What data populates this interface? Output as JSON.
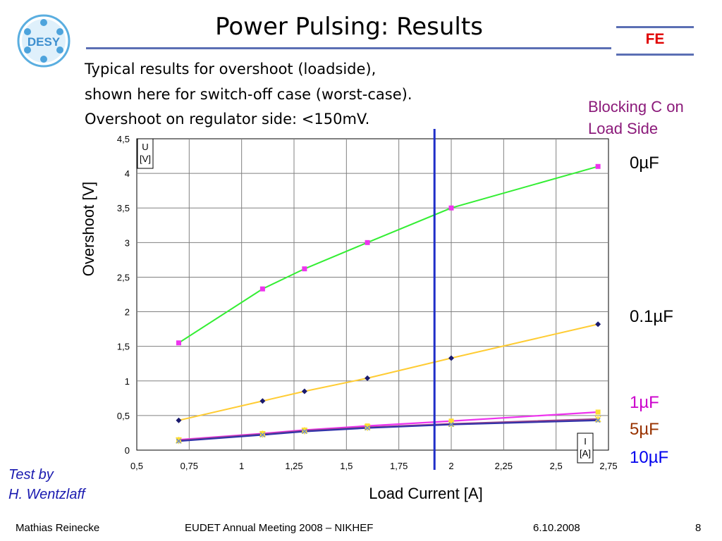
{
  "slide": {
    "title": "Power Pulsing: Results",
    "badge": "FE",
    "logo_text": "DESY",
    "intro_lines": [
      "Typical results for overshoot (loadside),",
      "shown here for switch-off case (worst-case).",
      "Overshoot on regulator side: <150mV."
    ],
    "legend_title_lines": [
      "Blocking C on",
      "Load Side"
    ],
    "test_by_lines": [
      "Test by",
      "H. Wentzlaff"
    ]
  },
  "footer": {
    "author": "Mathias Reinecke",
    "event": "EUDET Annual Meeting 2008 – NIKHEF",
    "date": "6.10.2008",
    "page": "8"
  },
  "colors": {
    "series_0uF": "#33ee33",
    "series_01uF": "#ffcc33",
    "series_1uF": "#ee33ee",
    "series_5uF": "#994488",
    "series_10uF": "#3333aa",
    "marker_pink": "#ee33ee",
    "marker_navy": "#1a1a6e",
    "vline": "#1f2ec8",
    "label_1uF": "#cc00cc",
    "label_5uF": "#993300",
    "label_10uF": "#0000ee",
    "blocking_label": "#8b1a7a",
    "title_rule": "#5b6fb4",
    "badge": "#e00000"
  },
  "chart_data": {
    "type": "line",
    "xlabel": "Load Current [A]",
    "ylabel": "Overshoot [V]",
    "x_unit_box": [
      "I",
      "[A]"
    ],
    "y_unit_box": [
      "U",
      "[V]"
    ],
    "xlim": [
      0.5,
      2.75
    ],
    "ylim": [
      0,
      4.5
    ],
    "xticks": [
      "0,5",
      "0,75",
      "1",
      "1,25",
      "1,5",
      "1,75",
      "2",
      "2,25",
      "2,5",
      "2,75"
    ],
    "yticks": [
      "0",
      "0,5",
      "1",
      "1,5",
      "2",
      "2,5",
      "3",
      "3,5",
      "4",
      "4,5"
    ],
    "grid": true,
    "vertical_line_x": 1.92,
    "series": [
      {
        "name": "0µF",
        "label_color": "#000000",
        "line": "#33ee33",
        "marker": "#ee33ee",
        "marker_shape": "square",
        "x": [
          0.7,
          1.1,
          1.3,
          1.6,
          2.0,
          2.7
        ],
        "y": [
          1.55,
          2.33,
          2.62,
          3.0,
          3.5,
          4.1
        ]
      },
      {
        "name": "0.1µF",
        "label_color": "#000000",
        "line": "#ffcc33",
        "marker": "#1a1a6e",
        "marker_shape": "diamond",
        "x": [
          0.7,
          1.1,
          1.3,
          1.6,
          2.0,
          2.7
        ],
        "y": [
          0.43,
          0.71,
          0.85,
          1.04,
          1.33,
          1.82
        ]
      },
      {
        "name": "1µF",
        "label_color": "#cc00cc",
        "line": "#ee33ee",
        "marker": "#ffdd33",
        "marker_shape": "square",
        "x": [
          0.7,
          1.1,
          1.3,
          1.6,
          2.0,
          2.7
        ],
        "y": [
          0.15,
          0.24,
          0.29,
          0.35,
          0.42,
          0.55
        ]
      },
      {
        "name": "5µF",
        "label_color": "#993300",
        "line": "#994488",
        "marker": "#ffdd33",
        "marker_shape": "star",
        "x": [
          0.7,
          1.1,
          1.3,
          1.6,
          2.0,
          2.7
        ],
        "y": [
          0.14,
          0.23,
          0.28,
          0.33,
          0.38,
          0.45
        ]
      },
      {
        "name": "10µF",
        "label_color": "#0000ee",
        "line": "#3333aa",
        "marker": "#6688cc",
        "marker_shape": "x",
        "x": [
          0.7,
          1.1,
          1.3,
          1.6,
          2.0,
          2.7
        ],
        "y": [
          0.13,
          0.22,
          0.27,
          0.32,
          0.37,
          0.43
        ]
      }
    ]
  }
}
